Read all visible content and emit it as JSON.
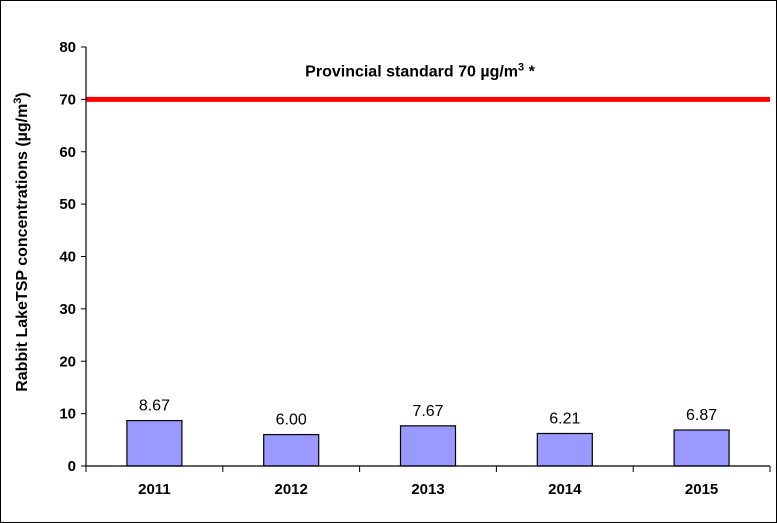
{
  "chart_data": {
    "type": "bar",
    "categories": [
      "2011",
      "2012",
      "2013",
      "2014",
      "2015"
    ],
    "values": [
      8.67,
      6.0,
      7.67,
      6.21,
      6.87
    ],
    "data_labels": [
      "8.67",
      "6.00",
      "7.67",
      "6.21",
      "6.87"
    ],
    "ylabel_main": "Rabbit LakeTSP concentrations (µg/m",
    "ylabel_sup": "3",
    "ylabel_end": ")",
    "ylim": [
      0,
      80
    ],
    "yticks": [
      0,
      10,
      20,
      30,
      40,
      50,
      60,
      70,
      80
    ],
    "ytick_labels": [
      "0",
      "10",
      "20",
      "30",
      "40",
      "50",
      "60",
      "70",
      "80"
    ],
    "reference_line": {
      "value": 70,
      "label_main": "Provincial standard 70 µg/m",
      "label_sup": "3",
      "label_end": " *",
      "color": "#ff0000"
    },
    "bar_color": "#9999ff",
    "bar_edge_color": "#000000",
    "grid": false,
    "legend": "none"
  }
}
